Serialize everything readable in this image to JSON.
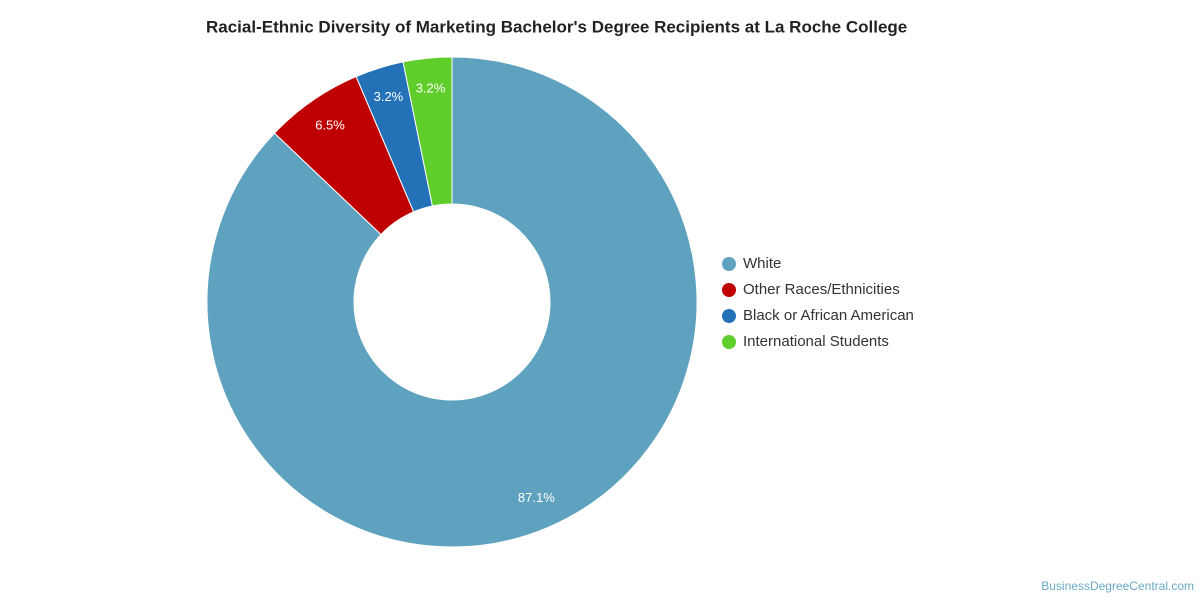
{
  "chart_data": {
    "type": "donut",
    "title": "Racial-Ethnic Diversity of Marketing Bachelor's Degree Recipients at La Roche College",
    "categories": [
      "White",
      "Other Races/Ethnicities",
      "Black or African American",
      "International Students"
    ],
    "values": [
      87.1,
      6.5,
      3.2,
      3.2
    ],
    "value_labels": [
      "87.1%",
      "6.5%",
      "3.2%",
      "3.2%"
    ],
    "colors": [
      "#5ea2bf",
      "#be0000",
      "#2371b7",
      "#5fce2a"
    ],
    "legend": "right",
    "credit": "BusinessDegreeCentral.com"
  }
}
